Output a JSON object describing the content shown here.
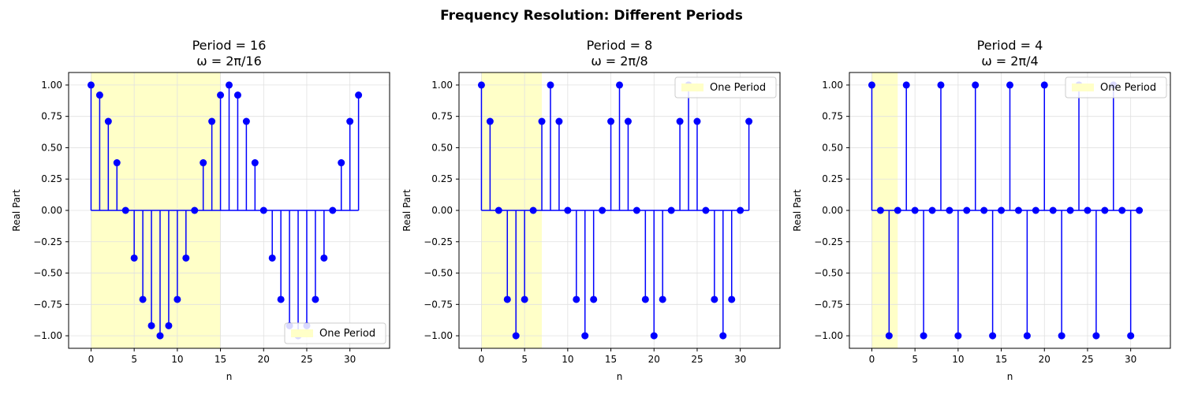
{
  "suptitle": "Frequency Resolution: Different Periods",
  "chart_data": [
    {
      "type": "stem",
      "title_line1": "Period = 16",
      "title_line2": "ω = 2π/16",
      "xlabel": "n",
      "ylabel": "Real Part",
      "xlim": [
        -2.6,
        34.6
      ],
      "ylim": [
        -1.1,
        1.1
      ],
      "xticks": [
        0,
        5,
        10,
        15,
        20,
        25,
        30
      ],
      "yticks": [
        -1.0,
        -0.75,
        -0.5,
        -0.25,
        0.0,
        0.25,
        0.5,
        0.75,
        1.0
      ],
      "ytick_labels": [
        "−1.00",
        "−0.75",
        "−0.50",
        "−0.25",
        "0.00",
        "0.25",
        "0.50",
        "0.75",
        "1.00"
      ],
      "grid": true,
      "period": 16,
      "shaded_span": [
        0,
        15
      ],
      "legend_label": "One Period",
      "legend_position": "lower-right",
      "x": [
        0,
        1,
        2,
        3,
        4,
        5,
        6,
        7,
        8,
        9,
        10,
        11,
        12,
        13,
        14,
        15,
        16,
        17,
        18,
        19,
        20,
        21,
        22,
        23,
        24,
        25,
        26,
        27,
        28,
        29,
        30,
        31
      ],
      "values": [
        1.0,
        0.92,
        0.71,
        0.38,
        0.0,
        -0.38,
        -0.71,
        -0.92,
        -1.0,
        -0.92,
        -0.71,
        -0.38,
        0.0,
        0.38,
        0.71,
        0.92,
        1.0,
        0.92,
        0.71,
        0.38,
        0.0,
        -0.38,
        -0.71,
        -0.92,
        -1.0,
        -0.92,
        -0.71,
        -0.38,
        0.0,
        0.38,
        0.71,
        0.92
      ]
    },
    {
      "type": "stem",
      "title_line1": "Period = 8",
      "title_line2": "ω = 2π/8",
      "xlabel": "n",
      "ylabel": "Real Part",
      "xlim": [
        -2.6,
        34.6
      ],
      "ylim": [
        -1.1,
        1.1
      ],
      "xticks": [
        0,
        5,
        10,
        15,
        20,
        25,
        30
      ],
      "yticks": [
        -1.0,
        -0.75,
        -0.5,
        -0.25,
        0.0,
        0.25,
        0.5,
        0.75,
        1.0
      ],
      "ytick_labels": [
        "−1.00",
        "−0.75",
        "−0.50",
        "−0.25",
        "0.00",
        "0.25",
        "0.50",
        "0.75",
        "1.00"
      ],
      "grid": true,
      "period": 8,
      "shaded_span": [
        0,
        7
      ],
      "legend_label": "One Period",
      "legend_position": "upper-right",
      "x": [
        0,
        1,
        2,
        3,
        4,
        5,
        6,
        7,
        8,
        9,
        10,
        11,
        12,
        13,
        14,
        15,
        16,
        17,
        18,
        19,
        20,
        21,
        22,
        23,
        24,
        25,
        26,
        27,
        28,
        29,
        30,
        31
      ],
      "values": [
        1.0,
        0.71,
        0.0,
        -0.71,
        -1.0,
        -0.71,
        0.0,
        0.71,
        1.0,
        0.71,
        0.0,
        -0.71,
        -1.0,
        -0.71,
        0.0,
        0.71,
        1.0,
        0.71,
        0.0,
        -0.71,
        -1.0,
        -0.71,
        0.0,
        0.71,
        1.0,
        0.71,
        0.0,
        -0.71,
        -1.0,
        -0.71,
        0.0,
        0.71
      ]
    },
    {
      "type": "stem",
      "title_line1": "Period = 4",
      "title_line2": "ω = 2π/4",
      "xlabel": "n",
      "ylabel": "Real Part",
      "xlim": [
        -2.6,
        34.6
      ],
      "ylim": [
        -1.1,
        1.1
      ],
      "xticks": [
        0,
        5,
        10,
        15,
        20,
        25,
        30
      ],
      "yticks": [
        -1.0,
        -0.75,
        -0.5,
        -0.25,
        0.0,
        0.25,
        0.5,
        0.75,
        1.0
      ],
      "ytick_labels": [
        "−1.00",
        "−0.75",
        "−0.50",
        "−0.25",
        "0.00",
        "0.25",
        "0.50",
        "0.75",
        "1.00"
      ],
      "grid": true,
      "period": 4,
      "shaded_span": [
        0,
        3
      ],
      "legend_label": "One Period",
      "legend_position": "upper-right",
      "x": [
        0,
        1,
        2,
        3,
        4,
        5,
        6,
        7,
        8,
        9,
        10,
        11,
        12,
        13,
        14,
        15,
        16,
        17,
        18,
        19,
        20,
        21,
        22,
        23,
        24,
        25,
        26,
        27,
        28,
        29,
        30,
        31
      ],
      "values": [
        1.0,
        0.0,
        -1.0,
        0.0,
        1.0,
        0.0,
        -1.0,
        0.0,
        1.0,
        0.0,
        -1.0,
        0.0,
        1.0,
        0.0,
        -1.0,
        0.0,
        1.0,
        0.0,
        -1.0,
        0.0,
        1.0,
        0.0,
        -1.0,
        0.0,
        1.0,
        0.0,
        -1.0,
        0.0,
        1.0,
        0.0,
        -1.0,
        0.0
      ]
    }
  ],
  "colors": {
    "stem": "#0000ff",
    "shade": "#ffffc8",
    "grid": "#e0e0e0",
    "legend_border": "#cccccc"
  }
}
